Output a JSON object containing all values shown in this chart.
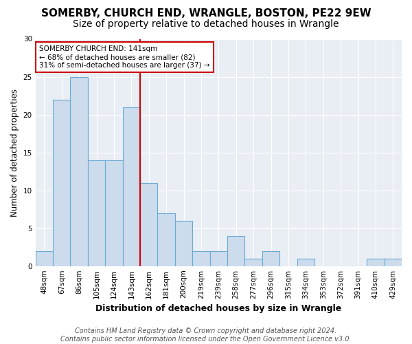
{
  "title": "SOMERBY, CHURCH END, WRANGLE, BOSTON, PE22 9EW",
  "subtitle": "Size of property relative to detached houses in Wrangle",
  "xlabel": "Distribution of detached houses by size in Wrangle",
  "ylabel": "Number of detached properties",
  "footer_line1": "Contains HM Land Registry data © Crown copyright and database right 2024.",
  "footer_line2": "Contains public sector information licensed under the Open Government Licence v3.0.",
  "categories": [
    "48sqm",
    "67sqm",
    "86sqm",
    "105sqm",
    "124sqm",
    "143sqm",
    "162sqm",
    "181sqm",
    "200sqm",
    "219sqm",
    "239sqm",
    "258sqm",
    "277sqm",
    "296sqm",
    "315sqm",
    "334sqm",
    "353sqm",
    "372sqm",
    "391sqm",
    "410sqm",
    "429sqm"
  ],
  "values": [
    2,
    22,
    25,
    14,
    14,
    21,
    11,
    7,
    6,
    2,
    2,
    4,
    1,
    2,
    0,
    1,
    0,
    0,
    0,
    1,
    1
  ],
  "bar_color": "#ccdcec",
  "bar_edge_color": "#6aaad4",
  "highlight_index": 5,
  "highlight_line_color": "#cc0000",
  "annotation_text": "SOMERBY CHURCH END: 141sqm\n← 68% of detached houses are smaller (82)\n31% of semi-detached houses are larger (37) →",
  "annotation_box_color": "white",
  "annotation_box_edge_color": "#cc0000",
  "ylim": [
    0,
    30
  ],
  "yticks": [
    0,
    5,
    10,
    15,
    20,
    25,
    30
  ],
  "fig_background_color": "#ffffff",
  "plot_background_color": "#e8eef4",
  "title_fontsize": 11,
  "subtitle_fontsize": 10,
  "xlabel_fontsize": 9,
  "ylabel_fontsize": 8.5,
  "tick_fontsize": 7.5,
  "footer_fontsize": 7
}
